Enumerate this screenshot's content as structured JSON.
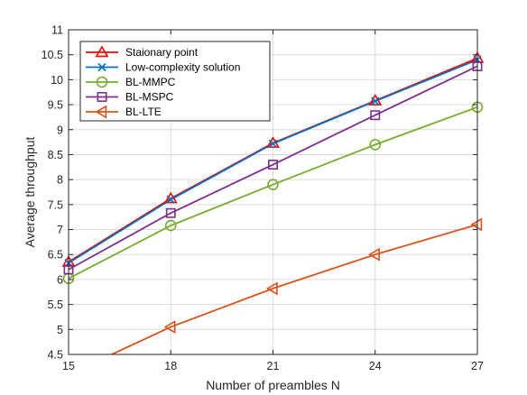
{
  "chart_data": {
    "type": "line",
    "title": "",
    "xlabel": "Number of preambles N",
    "ylabel": "Average throughput",
    "x": [
      15,
      18,
      21,
      24,
      27
    ],
    "xticks": [
      "15",
      "18",
      "21",
      "24",
      "27"
    ],
    "yticks": [
      "4.5",
      "5",
      "5.5",
      "6",
      "6.5",
      "7",
      "7.5",
      "8",
      "8.5",
      "9",
      "9.5",
      "10",
      "10.5",
      "11"
    ],
    "xlim": [
      15,
      27
    ],
    "ylim": [
      4.5,
      11
    ],
    "grid": true,
    "legend_position": "top-left",
    "series": [
      {
        "name": "Staionary point",
        "color": "#ff0000",
        "marker": "triangle-up",
        "values": [
          6.35,
          7.62,
          8.73,
          9.58,
          10.43
        ]
      },
      {
        "name": "Low-complexity solution",
        "color": "#0072bd",
        "marker": "x",
        "values": [
          6.33,
          7.6,
          8.72,
          9.57,
          10.4
        ]
      },
      {
        "name": "BL-MMPC",
        "color": "#77ac30",
        "marker": "circle",
        "values": [
          6.02,
          7.08,
          7.9,
          8.7,
          9.45
        ]
      },
      {
        "name": "BL-MSPC",
        "color": "#7e2f8e",
        "marker": "square",
        "values": [
          6.2,
          7.33,
          8.3,
          9.29,
          10.27
        ]
      },
      {
        "name": "BL-LTE",
        "color": "#d95319",
        "marker": "triangle-left",
        "values": [
          4.1,
          5.05,
          5.82,
          6.5,
          7.1
        ]
      }
    ]
  }
}
